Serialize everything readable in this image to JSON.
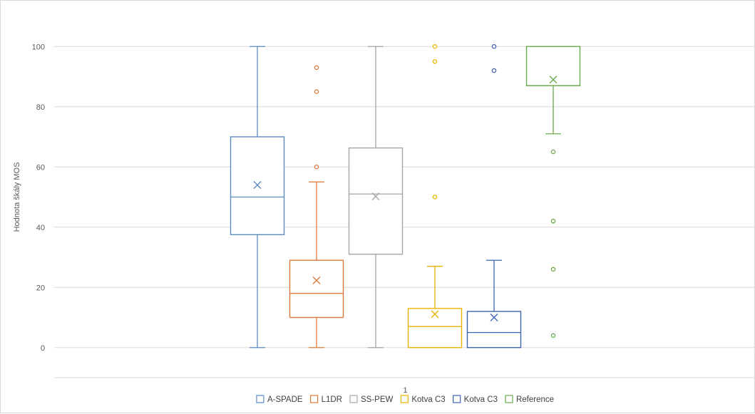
{
  "chart_data": {
    "type": "boxplot",
    "title": "",
    "xlabel": "",
    "ylabel": "Hodnota škály MOS",
    "ylim": [
      -10,
      110
    ],
    "yticks": [
      0,
      20,
      40,
      60,
      80,
      100
    ],
    "categories": [
      "1"
    ],
    "grid": true,
    "legend_position": "bottom",
    "series": [
      {
        "name": "A-SPADE",
        "color": "#5b8bc4",
        "min": 0,
        "q1": 37.5,
        "median": 50,
        "q3": 70,
        "max": 100,
        "mean": 54,
        "outliers": []
      },
      {
        "name": "L1DR",
        "color": "#e07a3b",
        "min": 0,
        "q1": 10,
        "median": 18,
        "q3": 29,
        "max": 55,
        "mean": 22.3,
        "outliers": [
          60,
          85,
          93
        ]
      },
      {
        "name": "SS-PEW",
        "color": "#a5a5a5",
        "min": 0,
        "q1": 31,
        "median": 51,
        "q3": 66.3,
        "max": 100,
        "mean": 50.2,
        "outliers": []
      },
      {
        "name": "Kotva C3",
        "color": "#e8b400",
        "min": 0,
        "q1": 0,
        "median": 7,
        "q3": 13,
        "max": 27,
        "mean": 11.1,
        "outliers": [
          50,
          95,
          100
        ]
      },
      {
        "name": "Kotva C3",
        "color": "#3e63b5",
        "min": 0,
        "q1": 0,
        "median": 5,
        "q3": 12,
        "max": 29,
        "mean": 10,
        "outliers": [
          92,
          100
        ]
      },
      {
        "name": "Reference",
        "color": "#6aa84f",
        "min": 71,
        "q1": 87,
        "median": 87,
        "q3": 100,
        "max": 100,
        "mean": 89,
        "outliers": [
          4,
          26,
          42,
          65
        ]
      }
    ]
  }
}
